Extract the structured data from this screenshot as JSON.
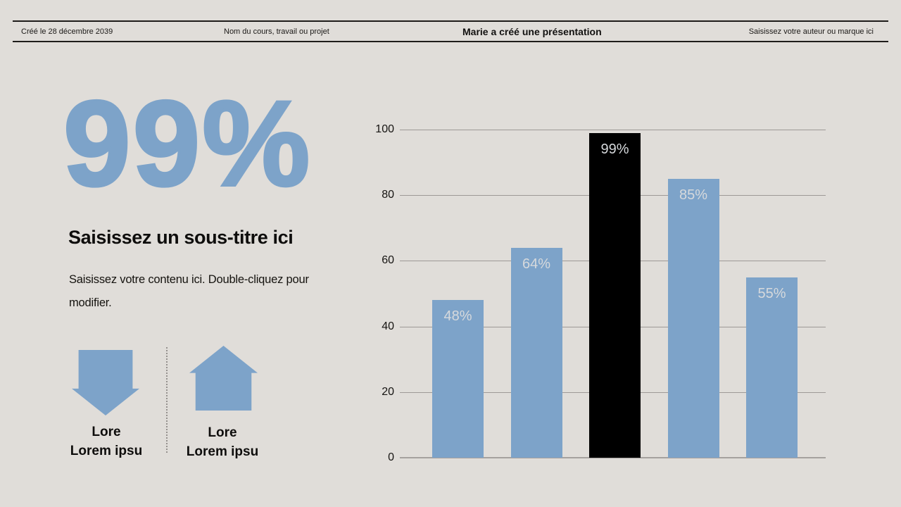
{
  "slide": {
    "background": "#e0ddd9",
    "accent_blue": "#7da3c9",
    "header": {
      "created_date": "Créé le 28 décembre 2039",
      "course_name": "Nom du cours, travail ou projet",
      "title": "Marie a créé une présentation",
      "author_placeholder": "Saisissez votre auteur ou marque ici"
    },
    "stat": {
      "big_number": "99%",
      "subtitle": "Saisissez un sous-titre ici",
      "body": "Saisissez votre contenu ici. Double-cliquez pour modifier."
    },
    "callouts": [
      {
        "icon": "arrow-down-icon",
        "line1": "Lore",
        "line2": "Lorem ipsu"
      },
      {
        "icon": "arrow-up-icon",
        "line1": "Lore",
        "line2": "Lorem ipsu"
      }
    ]
  },
  "chart_data": {
    "type": "bar",
    "values": [
      48,
      64,
      99,
      85,
      55
    ],
    "bar_labels": [
      "48%",
      "64%",
      "99%",
      "85%",
      "55%"
    ],
    "highlight_index": 2,
    "x_tick_labels": [],
    "yticks": [
      0,
      20,
      40,
      60,
      80,
      100
    ],
    "ylim": [
      0,
      100
    ],
    "grid": true,
    "legend": "none",
    "title": "",
    "xlabel": "",
    "ylabel": "",
    "bar_color": "#7da3c9",
    "highlight_color": "#000000",
    "value_label_color": "#d6d9dc",
    "gridline_color": "#9d9996"
  }
}
